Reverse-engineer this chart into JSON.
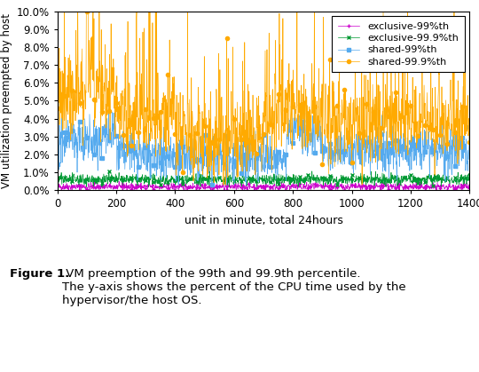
{
  "n": 1440,
  "xlabel": "unit in minute, total 24hours",
  "ylabel": "VM utilization preempted by host",
  "xlim": [
    0,
    1400
  ],
  "ylim": [
    0,
    0.1
  ],
  "yticks": [
    0.0,
    0.01,
    0.02,
    0.03,
    0.04,
    0.05,
    0.06,
    0.07,
    0.08,
    0.09,
    0.1
  ],
  "ytick_labels": [
    "0.0%",
    "1.0%",
    "2.0%",
    "3.0%",
    "4.0%",
    "5.0%",
    "6.0%",
    "7.0%",
    "8.0%",
    "9.0%",
    "10.0%"
  ],
  "xticks": [
    0,
    200,
    400,
    600,
    800,
    1000,
    1200,
    1400
  ],
  "series_labels": [
    "exclusive-99%th",
    "exclusive-99.9%th",
    "shared-99%th",
    "shared-99.9%th"
  ],
  "colors": [
    "#cc00cc",
    "#009933",
    "#55aaee",
    "#ffaa00"
  ],
  "linewidths": [
    0.5,
    0.5,
    0.5,
    0.5
  ],
  "markersize": 3,
  "figsize": [
    5.4,
    4.19
  ],
  "dpi": 100,
  "caption_bold": "Figure 1.",
  "caption_normal": " VM preemption of the 99th and 99.9th percentile.\nThe y-axis shows the percent of the CPU time used by the\nhypervisor/the host OS."
}
